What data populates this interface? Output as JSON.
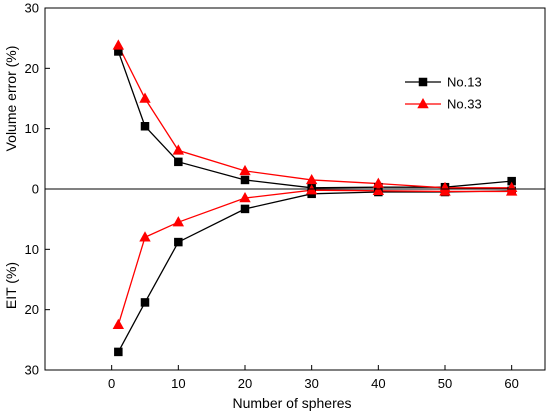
{
  "chart_data": {
    "type": "line",
    "x": [
      1,
      5,
      10,
      20,
      30,
      40,
      50,
      60
    ],
    "xlabel": "Number of spheres",
    "ylabel_upper": "Volume error (%)",
    "ylabel_lower": "EIT (%)",
    "xlim": [
      -10,
      65
    ],
    "ylim": [
      -30,
      30
    ],
    "x_ticks": [
      0,
      10,
      20,
      30,
      40,
      50,
      60
    ],
    "y_ticks": [
      30,
      20,
      10,
      0,
      -10,
      -20,
      -30
    ],
    "y_tick_labels": [
      "30",
      "20",
      "10",
      "0",
      "10",
      "20",
      "30"
    ],
    "zero_line": true,
    "grid": false,
    "legend_position": "top-right",
    "series": [
      {
        "name": "No.13",
        "color": "#000000",
        "marker": "square",
        "volume_error": [
          22.8,
          10.4,
          4.5,
          1.5,
          0.2,
          0.3,
          0.3,
          1.3
        ],
        "eit": [
          27.0,
          18.8,
          8.8,
          3.3,
          0.8,
          0.5,
          0.5,
          0.3
        ]
      },
      {
        "name": "No.33",
        "color": "#ff0000",
        "marker": "triangle",
        "volume_error": [
          23.8,
          15.0,
          6.4,
          3.0,
          1.5,
          0.9,
          0.2,
          0.2
        ],
        "eit": [
          22.5,
          8.0,
          5.5,
          1.5,
          0.2,
          0.3,
          0.4,
          0.4
        ]
      }
    ]
  }
}
